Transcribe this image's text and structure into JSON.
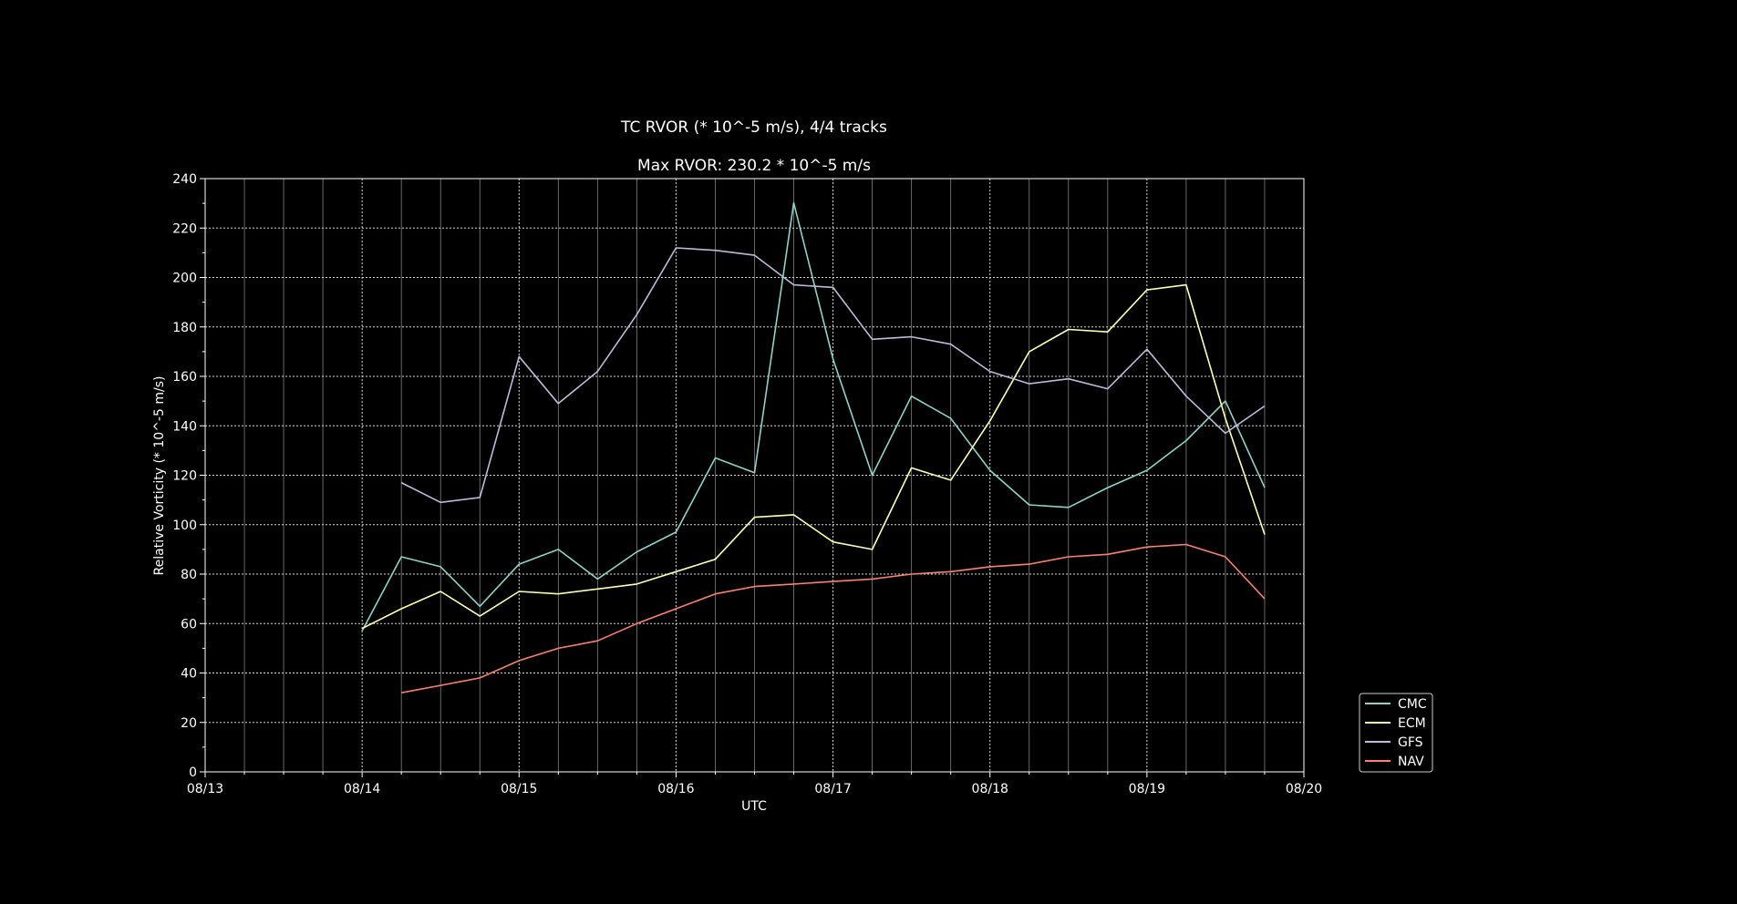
{
  "chart_data": {
    "type": "line",
    "title": "TC RVOR (* 10^-5 m/s), 4/4 tracks",
    "subtitle": "Max RVOR: 230.2 * 10^-5 m/s",
    "xlabel": "UTC",
    "ylabel": "Relative Vorticity (* 10^-5 m/s)",
    "x_ticks": [
      "08/13",
      "08/14",
      "08/15",
      "08/16",
      "08/17",
      "08/18",
      "08/19",
      "08/20"
    ],
    "y_ticks": [
      0,
      20,
      40,
      60,
      80,
      100,
      120,
      140,
      160,
      180,
      200,
      220,
      240
    ],
    "xlim": [
      "08/13 00Z",
      "08/20 00Z"
    ],
    "ylim": [
      0,
      240
    ],
    "x_unit_hours": 6,
    "grid": true,
    "legend_position": "outside-lower-right",
    "series": [
      {
        "name": "CMC",
        "color": "#8dd3c7",
        "x": [
          "08/14 00Z",
          "08/14 06Z",
          "08/14 12Z",
          "08/14 18Z",
          "08/15 00Z",
          "08/15 06Z",
          "08/15 12Z",
          "08/15 18Z",
          "08/16 00Z",
          "08/16 06Z",
          "08/16 12Z",
          "08/16 18Z",
          "08/17 00Z",
          "08/17 06Z",
          "08/17 12Z",
          "08/17 18Z",
          "08/18 00Z",
          "08/18 06Z",
          "08/18 12Z",
          "08/18 18Z",
          "08/19 00Z",
          "08/19 06Z",
          "08/19 12Z",
          "08/19 18Z"
        ],
        "values": [
          57,
          87,
          83,
          67,
          84,
          90,
          78,
          89,
          97,
          127,
          121,
          230.2,
          167,
          120,
          152,
          143,
          122,
          108,
          107,
          115,
          122,
          134,
          150,
          115
        ]
      },
      {
        "name": "ECM",
        "color": "#ffffb3",
        "x": [
          "08/14 00Z",
          "08/14 06Z",
          "08/14 12Z",
          "08/14 18Z",
          "08/15 00Z",
          "08/15 06Z",
          "08/15 12Z",
          "08/15 18Z",
          "08/16 00Z",
          "08/16 06Z",
          "08/16 12Z",
          "08/16 18Z",
          "08/17 00Z",
          "08/17 06Z",
          "08/17 12Z",
          "08/17 18Z",
          "08/18 00Z",
          "08/18 06Z",
          "08/18 12Z",
          "08/18 18Z",
          "08/19 00Z",
          "08/19 06Z",
          "08/19 12Z",
          "08/19 18Z"
        ],
        "values": [
          58,
          66,
          73,
          63,
          73,
          72,
          74,
          76,
          81,
          86,
          103,
          104,
          93,
          90,
          123,
          118,
          142,
          170,
          179,
          178,
          195,
          197,
          143,
          96
        ]
      },
      {
        "name": "GFS",
        "color": "#bebada",
        "x": [
          "08/14 06Z",
          "08/14 12Z",
          "08/14 18Z",
          "08/15 00Z",
          "08/15 06Z",
          "08/15 12Z",
          "08/15 18Z",
          "08/16 00Z",
          "08/16 06Z",
          "08/16 12Z",
          "08/16 18Z",
          "08/17 00Z",
          "08/17 06Z",
          "08/17 12Z",
          "08/17 18Z",
          "08/18 00Z",
          "08/18 06Z",
          "08/18 12Z",
          "08/18 18Z",
          "08/19 00Z",
          "08/19 06Z",
          "08/19 12Z",
          "08/19 18Z"
        ],
        "values": [
          117,
          109,
          111,
          168,
          149,
          162,
          185,
          212,
          211,
          209,
          197,
          196,
          175,
          176,
          173,
          162,
          157,
          159,
          155,
          171,
          152,
          137,
          148
        ]
      },
      {
        "name": "NAV",
        "color": "#fb8072",
        "x": [
          "08/14 06Z",
          "08/14 12Z",
          "08/14 18Z",
          "08/15 00Z",
          "08/15 06Z",
          "08/15 12Z",
          "08/15 18Z",
          "08/16 00Z",
          "08/16 06Z",
          "08/16 12Z",
          "08/16 18Z",
          "08/17 00Z",
          "08/17 06Z",
          "08/17 12Z",
          "08/17 18Z",
          "08/18 00Z",
          "08/18 06Z",
          "08/18 12Z",
          "08/18 18Z",
          "08/19 00Z",
          "08/19 06Z",
          "08/19 12Z",
          "08/19 18Z"
        ],
        "values": [
          32,
          35,
          38,
          45,
          50,
          53,
          60,
          66,
          72,
          75,
          76,
          77,
          78,
          80,
          81,
          83,
          84,
          87,
          88,
          91,
          92,
          87,
          70
        ]
      }
    ]
  }
}
